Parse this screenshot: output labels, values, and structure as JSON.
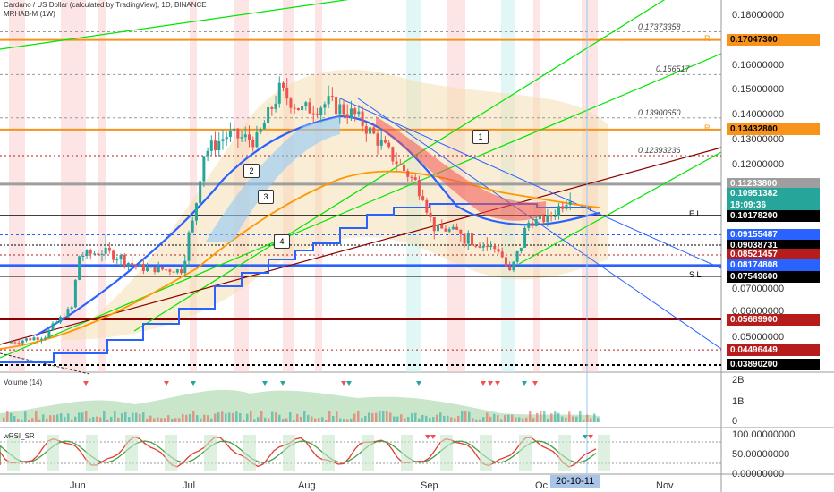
{
  "header": {
    "title": "Cardano / US Dollar (calculated by TradingView), 1D, BINANCE",
    "indicator": "MRHAB-M (1W)"
  },
  "price_axis": [
    "0.18000000",
    "0.16000000",
    "0.15000000",
    "0.14000000",
    "0.13000000",
    "0.12000000",
    "0.07000000",
    "0.06000000",
    "0.05000000"
  ],
  "fib_levels": [
    {
      "label": "0.17373358",
      "value": 0.17373358
    },
    {
      "label": "0.156517",
      "value": 0.156517
    },
    {
      "label": "0.13900650",
      "value": 0.1390065
    },
    {
      "label": "0.12393236",
      "value": 0.12393236
    }
  ],
  "price_labels": [
    {
      "text": "0.17047300",
      "value": 0.170473,
      "bg": "#f7931a",
      "fg": "#000000",
      "tag": "R"
    },
    {
      "text": "0.13432800",
      "value": 0.134328,
      "bg": "#f7931a",
      "fg": "#000000",
      "tag": "R"
    },
    {
      "text": "0.11233800",
      "value": 0.112338,
      "bg": "#9e9e9e",
      "fg": "#ffffff",
      "tag": ""
    },
    {
      "text": "0.10951382",
      "value": 0.10951382,
      "bg": "#26a69a",
      "fg": "#ffffff",
      "tag": ""
    },
    {
      "text": "18:09:36",
      "value": 0.1055,
      "bg": "#26a69a",
      "fg": "#ffffff",
      "tag": ""
    },
    {
      "text": "0.10178200",
      "value": 0.101782,
      "bg": "#000000",
      "fg": "#ffffff",
      "tag": "E L"
    },
    {
      "text": "0.09155487",
      "value": 0.09155487,
      "bg": "#2962ff",
      "fg": "#ffffff",
      "tag": ""
    },
    {
      "text": "0.09038731",
      "value": 0.09038731,
      "bg": "#000000",
      "fg": "#ffffff",
      "tag": ""
    },
    {
      "text": "0.08521457",
      "value": 0.08521457,
      "bg": "#b71c1c",
      "fg": "#ffffff",
      "tag": ""
    },
    {
      "text": "0.08174808",
      "value": 0.08174808,
      "bg": "#2962ff",
      "fg": "#ffffff",
      "tag": ""
    },
    {
      "text": "0.07549600",
      "value": 0.075496,
      "bg": "#000000",
      "fg": "#ffffff",
      "tag": "S L"
    },
    {
      "text": "0.05689900",
      "value": 0.056899,
      "bg": "#b71c1c",
      "fg": "#ffffff",
      "tag": ""
    },
    {
      "text": "0.04496449",
      "value": 0.04496449,
      "bg": "#b71c1c",
      "fg": "#ffffff",
      "tag": ""
    },
    {
      "text": "0.03890200",
      "value": 0.038902,
      "bg": "#000000",
      "fg": "#ffffff",
      "tag": ""
    }
  ],
  "volume_pane": {
    "title": "Volume (14)",
    "axis": [
      "2B",
      "1B",
      "0"
    ]
  },
  "rsi_pane": {
    "title": "wRSI_SR",
    "axis": [
      "100.00000000",
      "50.00000000",
      "0.00000000"
    ]
  },
  "dates": [
    "Jun",
    "Jul",
    "Aug",
    "Sep",
    "Oc",
    "Nov"
  ],
  "cursor_date": "20-10-11",
  "callouts": [
    "1",
    "2",
    "3",
    "4"
  ],
  "colors": {
    "up": "#26a69a",
    "down": "#ef5350",
    "ema_blue": "#2962ff",
    "ema_orange": "#ff9800",
    "trend_green": "#00e600",
    "trend_red": "#8b0000",
    "cloud": "#f5deb3"
  },
  "chart_data": {
    "type": "candlestick",
    "title": "Cardano / US Dollar (calculated by TradingView), 1D, BINANCE",
    "x_range": [
      "2020-05-13",
      "2020-11-20"
    ],
    "ylim": [
      0.035,
      0.19
    ],
    "last_close": 0.10951382,
    "close_series": [
      {
        "date": "2020-05-15",
        "close": 0.048
      },
      {
        "date": "2020-05-25",
        "close": 0.051
      },
      {
        "date": "2020-06-01",
        "close": 0.062
      },
      {
        "date": "2020-06-03",
        "close": 0.085
      },
      {
        "date": "2020-06-10",
        "close": 0.087
      },
      {
        "date": "2020-06-20",
        "close": 0.08
      },
      {
        "date": "2020-06-30",
        "close": 0.079
      },
      {
        "date": "2020-07-03",
        "close": 0.098
      },
      {
        "date": "2020-07-06",
        "close": 0.125
      },
      {
        "date": "2020-07-12",
        "close": 0.132
      },
      {
        "date": "2020-07-20",
        "close": 0.13
      },
      {
        "date": "2020-07-26",
        "close": 0.15
      },
      {
        "date": "2020-08-01",
        "close": 0.142
      },
      {
        "date": "2020-08-08",
        "close": 0.145
      },
      {
        "date": "2020-08-15",
        "close": 0.14
      },
      {
        "date": "2020-08-20",
        "close": 0.132
      },
      {
        "date": "2020-08-28",
        "close": 0.118
      },
      {
        "date": "2020-09-02",
        "close": 0.11
      },
      {
        "date": "2020-09-05",
        "close": 0.095
      },
      {
        "date": "2020-09-15",
        "close": 0.092
      },
      {
        "date": "2020-09-22",
        "close": 0.088
      },
      {
        "date": "2020-09-25",
        "close": 0.078
      },
      {
        "date": "2020-09-30",
        "close": 0.098
      },
      {
        "date": "2020-10-05",
        "close": 0.1
      },
      {
        "date": "2020-10-11",
        "close": 0.1095
      }
    ]
  }
}
